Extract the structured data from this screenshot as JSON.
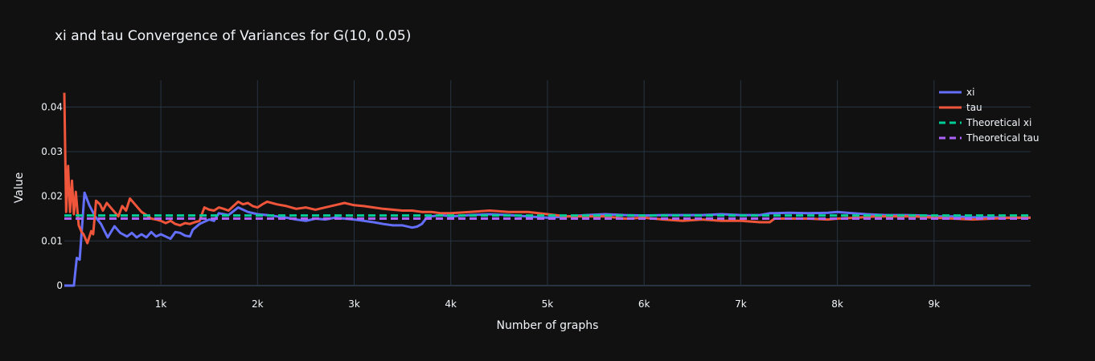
{
  "chart_data": {
    "type": "line",
    "title": "xi and tau Convergence of Variances for G(10, 0.05)",
    "xlabel": "Number of graphs",
    "ylabel": "Value",
    "xlim": [
      1,
      10000
    ],
    "ylim": [
      0,
      0.046
    ],
    "grid": true,
    "legend_position": "top-right",
    "x_ticks": [
      {
        "value": 1000,
        "label": "1k"
      },
      {
        "value": 2000,
        "label": "2k"
      },
      {
        "value": 3000,
        "label": "3k"
      },
      {
        "value": 4000,
        "label": "4k"
      },
      {
        "value": 5000,
        "label": "5k"
      },
      {
        "value": 6000,
        "label": "6k"
      },
      {
        "value": 7000,
        "label": "7k"
      },
      {
        "value": 8000,
        "label": "8k"
      },
      {
        "value": 9000,
        "label": "9k"
      }
    ],
    "y_ticks": [
      {
        "value": 0,
        "label": "0"
      },
      {
        "value": 0.01,
        "label": "0.01"
      },
      {
        "value": 0.02,
        "label": "0.02"
      },
      {
        "value": 0.03,
        "label": "0.03"
      },
      {
        "value": 0.04,
        "label": "0.04"
      }
    ],
    "series": [
      {
        "name": "xi",
        "color": "#636efa",
        "dash": "solid",
        "x": [
          1,
          60,
          100,
          130,
          160,
          210,
          260,
          320,
          380,
          450,
          520,
          580,
          650,
          700,
          750,
          800,
          850,
          900,
          950,
          1000,
          1050,
          1100,
          1150,
          1200,
          1250,
          1300,
          1330,
          1400,
          1500,
          1550,
          1600,
          1650,
          1700,
          1800,
          1900,
          2000,
          2100,
          2200,
          2300,
          2400,
          2500,
          2600,
          2700,
          2800,
          2900,
          3000,
          3100,
          3200,
          3300,
          3400,
          3500,
          3600,
          3650,
          3700,
          3750,
          3800,
          3900,
          4000,
          4200,
          4400,
          4600,
          4800,
          5000,
          5200,
          5400,
          5600,
          5800,
          6000,
          6200,
          6400,
          6600,
          6800,
          7000,
          7200,
          7300,
          7350,
          7500,
          7700,
          7900,
          8000,
          8100,
          8300,
          8500,
          8700,
          8900,
          9000,
          9200,
          9400,
          9600,
          9800,
          10000
        ],
        "y": [
          0,
          0,
          0,
          0.0062,
          0.0058,
          0.0208,
          0.018,
          0.0155,
          0.0138,
          0.0108,
          0.0133,
          0.0118,
          0.011,
          0.0118,
          0.0108,
          0.0115,
          0.0108,
          0.012,
          0.011,
          0.0115,
          0.011,
          0.0105,
          0.012,
          0.0118,
          0.0112,
          0.011,
          0.0125,
          0.0138,
          0.0148,
          0.0145,
          0.0162,
          0.016,
          0.0158,
          0.0175,
          0.0165,
          0.016,
          0.0158,
          0.0155,
          0.0152,
          0.0148,
          0.0145,
          0.015,
          0.0148,
          0.0152,
          0.015,
          0.0148,
          0.0145,
          0.0142,
          0.0138,
          0.0135,
          0.0135,
          0.013,
          0.0132,
          0.0138,
          0.0152,
          0.0155,
          0.0158,
          0.0155,
          0.0158,
          0.016,
          0.0158,
          0.0155,
          0.0152,
          0.0155,
          0.0158,
          0.016,
          0.0158,
          0.0157,
          0.0158,
          0.0158,
          0.0158,
          0.016,
          0.0158,
          0.0158,
          0.0162,
          0.0162,
          0.0163,
          0.0162,
          0.0163,
          0.0165,
          0.0163,
          0.016,
          0.0158,
          0.0158,
          0.0157,
          0.0155,
          0.0155,
          0.0153,
          0.0153,
          0.0152,
          0.0152
        ]
      },
      {
        "name": "tau",
        "color": "#ef553b",
        "dash": "solid",
        "x": [
          1,
          10,
          20,
          40,
          60,
          80,
          100,
          120,
          150,
          180,
          200,
          240,
          280,
          300,
          330,
          370,
          400,
          440,
          480,
          520,
          560,
          600,
          640,
          680,
          720,
          760,
          800,
          850,
          900,
          950,
          1000,
          1050,
          1100,
          1150,
          1200,
          1250,
          1300,
          1350,
          1400,
          1450,
          1500,
          1550,
          1600,
          1650,
          1700,
          1750,
          1800,
          1850,
          1900,
          1950,
          2000,
          2050,
          2100,
          2200,
          2300,
          2400,
          2500,
          2600,
          2700,
          2800,
          2900,
          3000,
          3100,
          3200,
          3300,
          3400,
          3500,
          3600,
          3700,
          3800,
          3900,
          4000,
          4200,
          4400,
          4600,
          4800,
          5000,
          5200,
          5400,
          5600,
          5800,
          6000,
          6200,
          6400,
          6600,
          6800,
          7000,
          7200,
          7300,
          7350,
          7500,
          7700,
          7900,
          8000,
          8200,
          8400,
          8600,
          8800,
          9000,
          9200,
          9400,
          9600,
          9800,
          10000
        ],
        "y": [
          0.0432,
          0.03,
          0.0165,
          0.0268,
          0.0165,
          0.0235,
          0.016,
          0.021,
          0.0135,
          0.012,
          0.0115,
          0.0095,
          0.0122,
          0.0115,
          0.019,
          0.0182,
          0.0168,
          0.0185,
          0.0175,
          0.0165,
          0.0155,
          0.0178,
          0.0168,
          0.0195,
          0.0185,
          0.0175,
          0.0165,
          0.0158,
          0.015,
          0.0148,
          0.0145,
          0.014,
          0.0145,
          0.0138,
          0.0135,
          0.014,
          0.0138,
          0.0142,
          0.0145,
          0.0175,
          0.017,
          0.0168,
          0.0175,
          0.0172,
          0.0168,
          0.0178,
          0.0188,
          0.0182,
          0.0185,
          0.0178,
          0.0175,
          0.0182,
          0.0188,
          0.0182,
          0.0178,
          0.0172,
          0.0175,
          0.017,
          0.0175,
          0.018,
          0.0185,
          0.018,
          0.0178,
          0.0175,
          0.0172,
          0.017,
          0.0168,
          0.0168,
          0.0165,
          0.0165,
          0.0162,
          0.0162,
          0.0165,
          0.0168,
          0.0165,
          0.0165,
          0.016,
          0.0155,
          0.0155,
          0.0155,
          0.015,
          0.0152,
          0.0148,
          0.0145,
          0.0148,
          0.0145,
          0.0145,
          0.0142,
          0.0142,
          0.015,
          0.015,
          0.015,
          0.0148,
          0.015,
          0.0152,
          0.0155,
          0.0155,
          0.0155,
          0.0152,
          0.015,
          0.0148,
          0.015,
          0.0152,
          0.0152
        ]
      },
      {
        "name": "Theoretical xi",
        "color": "#00cc96",
        "dash": "dashed",
        "x": [
          1,
          10000
        ],
        "y": [
          0.0157,
          0.0157
        ]
      },
      {
        "name": "Theoretical tau",
        "color": "#ab63fa",
        "dash": "dashed",
        "x": [
          1,
          10000
        ],
        "y": [
          0.015,
          0.015
        ]
      }
    ]
  }
}
